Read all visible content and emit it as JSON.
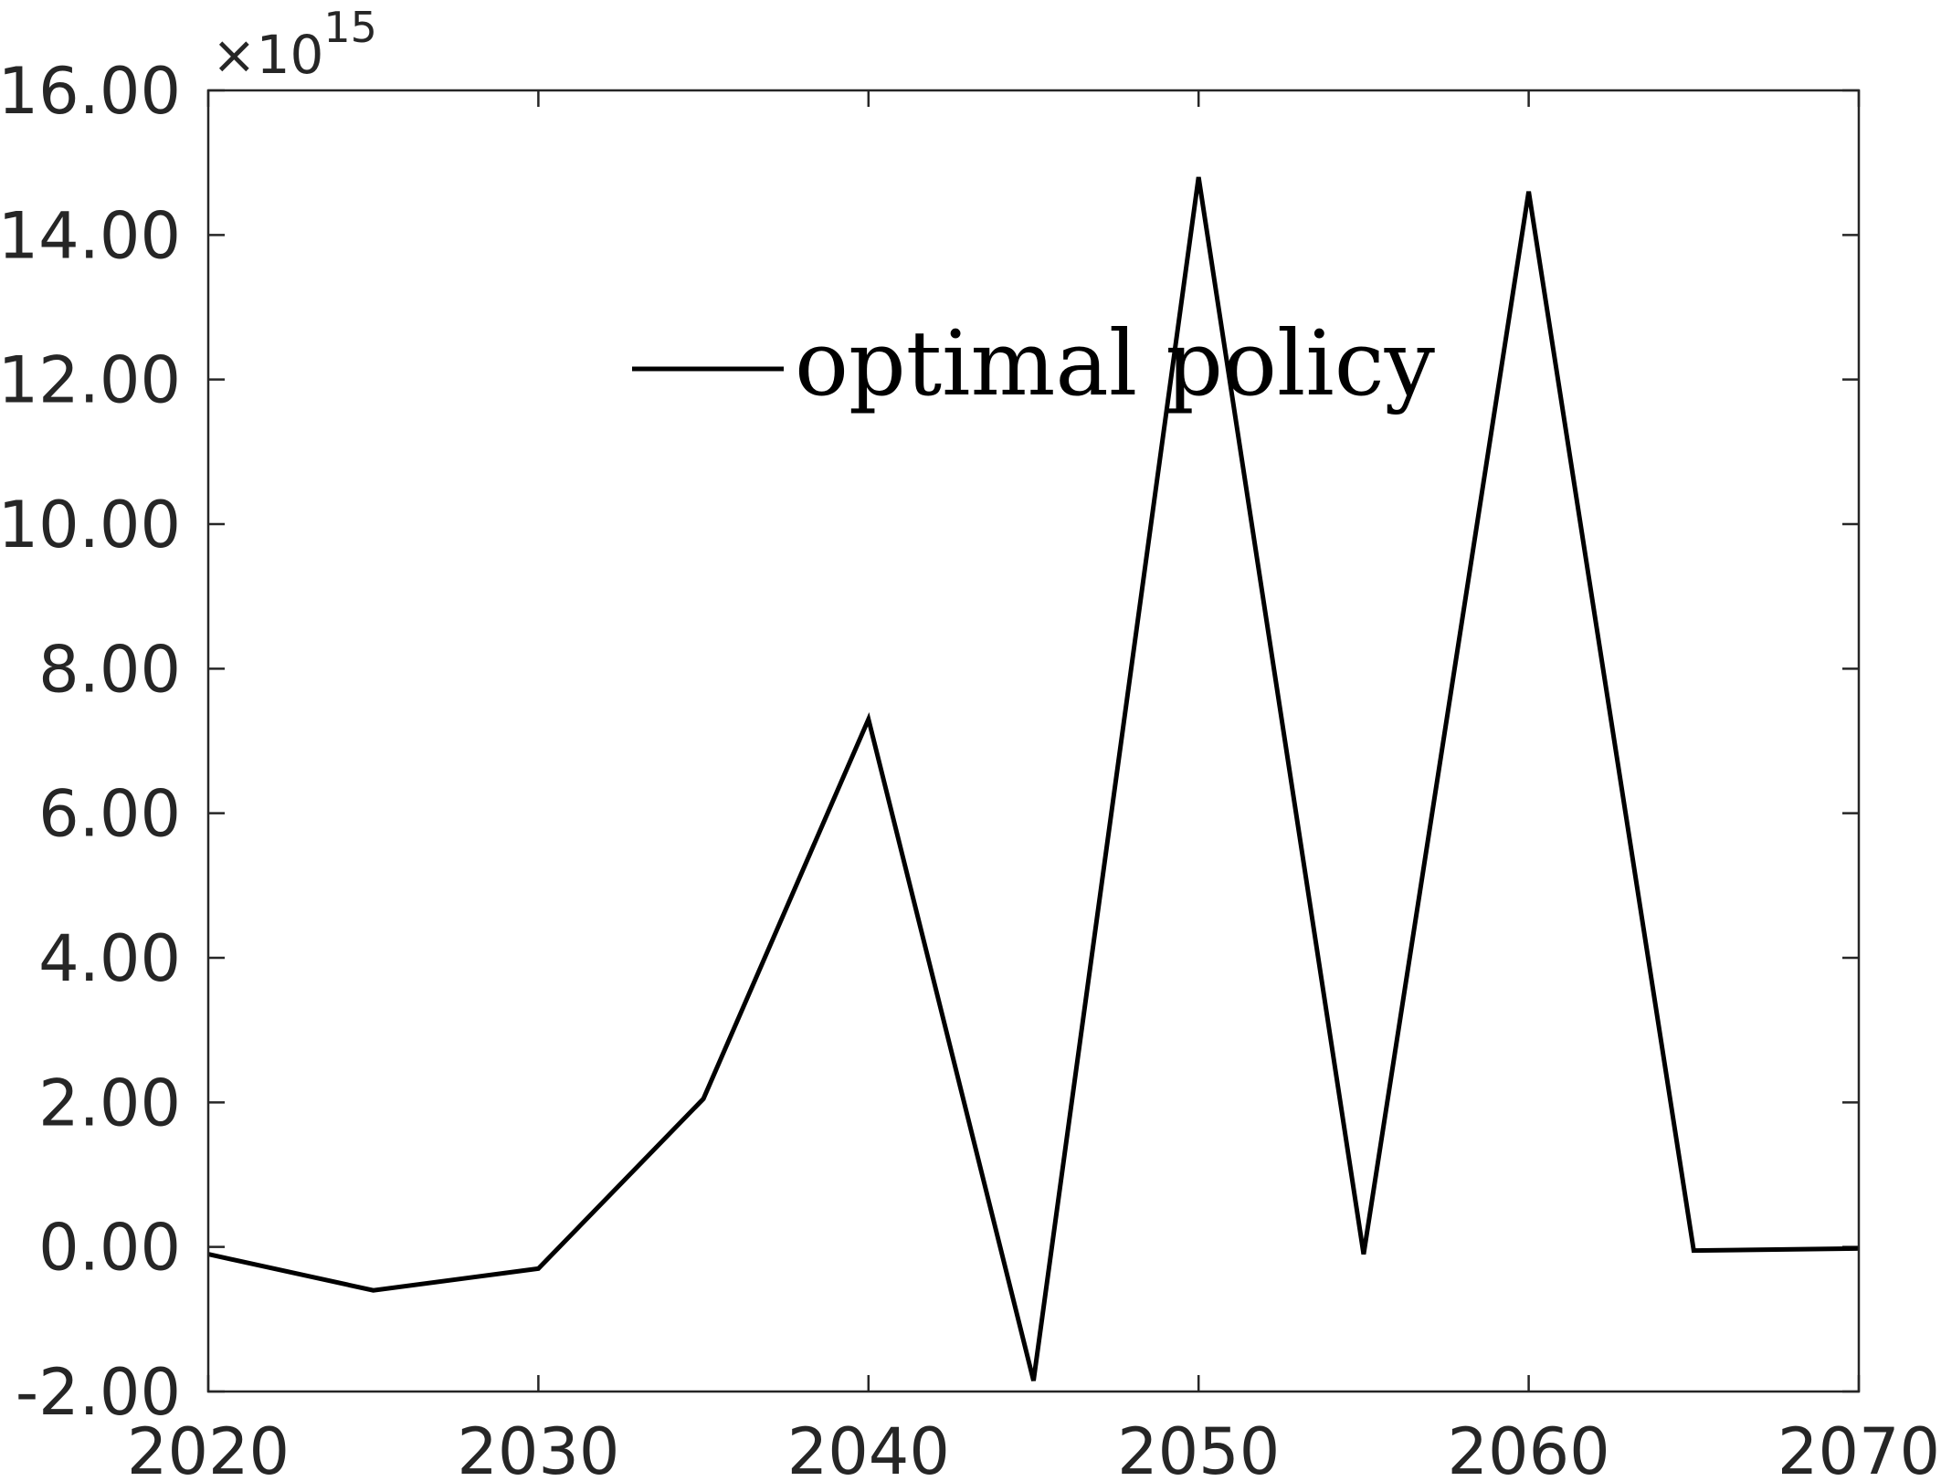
{
  "chart_data": {
    "type": "line",
    "title": "",
    "xlabel": "",
    "ylabel": "",
    "xlim": [
      2020,
      2070
    ],
    "ylim": [
      -2,
      16
    ],
    "x_ticks": [
      "2020",
      "2030",
      "2040",
      "2050",
      "2060",
      "2070"
    ],
    "y_ticks": [
      "-2.00",
      "0.00",
      "2.00",
      "4.00",
      "6.00",
      "8.00",
      "10.00",
      "12.00",
      "14.00",
      "16.00"
    ],
    "y_multiplier": {
      "base": "×10",
      "exponent": "15"
    },
    "grid": false,
    "legend_position": "top-center",
    "series": [
      {
        "name": "optimal policy",
        "color": "#000000",
        "x": [
          2020,
          2025,
          2030,
          2035,
          2040,
          2045,
          2050,
          2055,
          2060,
          2065,
          2070
        ],
        "y": [
          -0.1,
          -0.6,
          -0.3,
          2.05,
          7.3,
          -1.85,
          14.8,
          -0.1,
          14.6,
          -0.05,
          -0.02
        ]
      }
    ]
  }
}
